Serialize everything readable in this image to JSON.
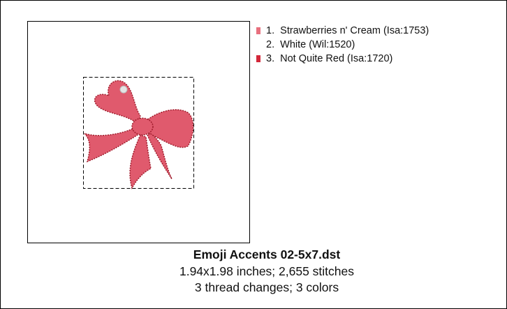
{
  "threads": [
    {
      "label": "1.  Strawberries n' Cream (Isa:1753)",
      "color": "#e8707e"
    },
    {
      "label": "2.  White (Wil:1520)",
      "color": "#ffffff"
    },
    {
      "label": "3.  Not Quite Red (Isa:1720)",
      "color": "#d3283a"
    }
  ],
  "design": {
    "title": "Emoji Accents 02-5x7.dst",
    "size_line": "1.94x1.98 inches; 2,655 stitches",
    "changes_line": "3 thread changes; 3 colors"
  }
}
